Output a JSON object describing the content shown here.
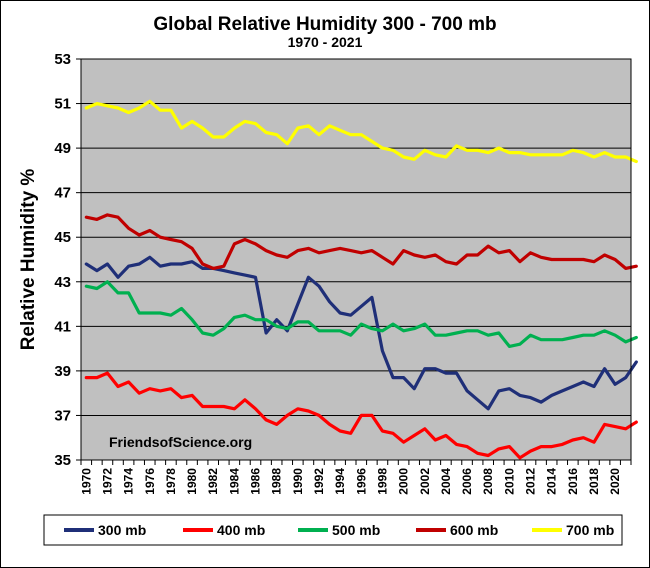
{
  "chart_data": {
    "type": "line",
    "title": "Global Relative Humidity 300 - 700 mb",
    "subtitle": "1970 - 2021",
    "ylabel": "Relative Humidity %",
    "xlabel": "",
    "ylim": [
      35,
      53
    ],
    "yticks": [
      35,
      37,
      39,
      41,
      43,
      45,
      47,
      49,
      51,
      53
    ],
    "xlim": [
      1970,
      2021
    ],
    "xticks": [
      1970,
      1972,
      1974,
      1976,
      1978,
      1980,
      1982,
      1984,
      1986,
      1988,
      1990,
      1992,
      1994,
      1996,
      1998,
      2000,
      2002,
      2004,
      2006,
      2008,
      2010,
      2012,
      2014,
      2016,
      2018,
      2020
    ],
    "grid": "horizontal",
    "legend_position": "bottom",
    "annotation": "FriendsofScience.org",
    "colors": {
      "plot_bg": "#c0c0c0",
      "grid": "#000000"
    },
    "series": [
      {
        "name": "300 mb",
        "color": "#1f2f78",
        "start_year": 1970,
        "values": [
          43.8,
          43.5,
          43.8,
          43.2,
          43.7,
          43.8,
          44.1,
          43.7,
          43.8,
          43.8,
          43.9,
          43.6,
          43.6,
          43.5,
          43.4,
          43.3,
          43.2,
          40.7,
          41.3,
          40.8,
          42.0,
          43.2,
          42.8,
          42.1,
          41.6,
          41.5,
          41.9,
          42.3,
          39.9,
          38.7,
          38.7,
          38.2,
          39.1,
          39.1,
          38.9,
          38.9,
          38.1,
          37.7,
          37.3,
          38.1,
          38.2,
          37.9,
          37.8,
          37.6,
          37.9,
          38.1,
          38.3,
          38.5,
          38.3,
          39.1,
          38.4,
          38.7,
          39.4
        ]
      },
      {
        "name": "400 mb",
        "color": "#ff0000",
        "start_year": 1970,
        "values": [
          38.7,
          38.7,
          38.9,
          38.3,
          38.5,
          38.0,
          38.2,
          38.1,
          38.2,
          37.8,
          37.9,
          37.4,
          37.4,
          37.4,
          37.3,
          37.7,
          37.3,
          36.8,
          36.6,
          37.0,
          37.3,
          37.2,
          37.0,
          36.6,
          36.3,
          36.2,
          37.0,
          37.0,
          36.3,
          36.2,
          35.8,
          36.1,
          36.4,
          35.9,
          36.1,
          35.7,
          35.6,
          35.3,
          35.2,
          35.5,
          35.6,
          35.1,
          35.4,
          35.6,
          35.6,
          35.7,
          35.9,
          36.0,
          35.8,
          36.6,
          36.5,
          36.4,
          36.7
        ]
      },
      {
        "name": "500 mb",
        "color": "#00b050",
        "start_year": 1970,
        "values": [
          42.8,
          42.7,
          43.0,
          42.5,
          42.5,
          41.6,
          41.6,
          41.6,
          41.5,
          41.8,
          41.3,
          40.7,
          40.6,
          40.9,
          41.4,
          41.5,
          41.3,
          41.3,
          41.0,
          40.9,
          41.2,
          41.2,
          40.8,
          40.8,
          40.8,
          40.6,
          41.1,
          40.9,
          40.8,
          41.1,
          40.8,
          40.9,
          41.1,
          40.6,
          40.6,
          40.7,
          40.8,
          40.8,
          40.6,
          40.7,
          40.1,
          40.2,
          40.6,
          40.4,
          40.4,
          40.4,
          40.5,
          40.6,
          40.6,
          40.8,
          40.6,
          40.3,
          40.5
        ]
      },
      {
        "name": "600 mb",
        "color": "#c00000",
        "start_year": 1970,
        "values": [
          45.9,
          45.8,
          46.0,
          45.9,
          45.4,
          45.1,
          45.3,
          45.0,
          44.9,
          44.8,
          44.5,
          43.8,
          43.6,
          43.7,
          44.7,
          44.9,
          44.7,
          44.4,
          44.2,
          44.1,
          44.4,
          44.5,
          44.3,
          44.4,
          44.5,
          44.4,
          44.3,
          44.4,
          44.1,
          43.8,
          44.4,
          44.2,
          44.1,
          44.2,
          43.9,
          43.8,
          44.2,
          44.2,
          44.6,
          44.3,
          44.4,
          43.9,
          44.3,
          44.1,
          44.0,
          44.0,
          44.0,
          44.0,
          43.9,
          44.2,
          44.0,
          43.6,
          43.7
        ]
      },
      {
        "name": "700 mb",
        "color": "#ffff00",
        "start_year": 1970,
        "values": [
          50.8,
          51.0,
          50.9,
          50.8,
          50.6,
          50.8,
          51.1,
          50.7,
          50.7,
          49.9,
          50.2,
          49.9,
          49.5,
          49.5,
          49.9,
          50.2,
          50.1,
          49.7,
          49.6,
          49.2,
          49.9,
          50.0,
          49.6,
          50.0,
          49.8,
          49.6,
          49.6,
          49.3,
          49.0,
          48.9,
          48.6,
          48.5,
          48.9,
          48.7,
          48.6,
          49.1,
          48.9,
          48.9,
          48.8,
          49.0,
          48.8,
          48.8,
          48.7,
          48.7,
          48.7,
          48.7,
          48.9,
          48.8,
          48.6,
          48.8,
          48.6,
          48.6,
          48.4
        ]
      }
    ]
  }
}
